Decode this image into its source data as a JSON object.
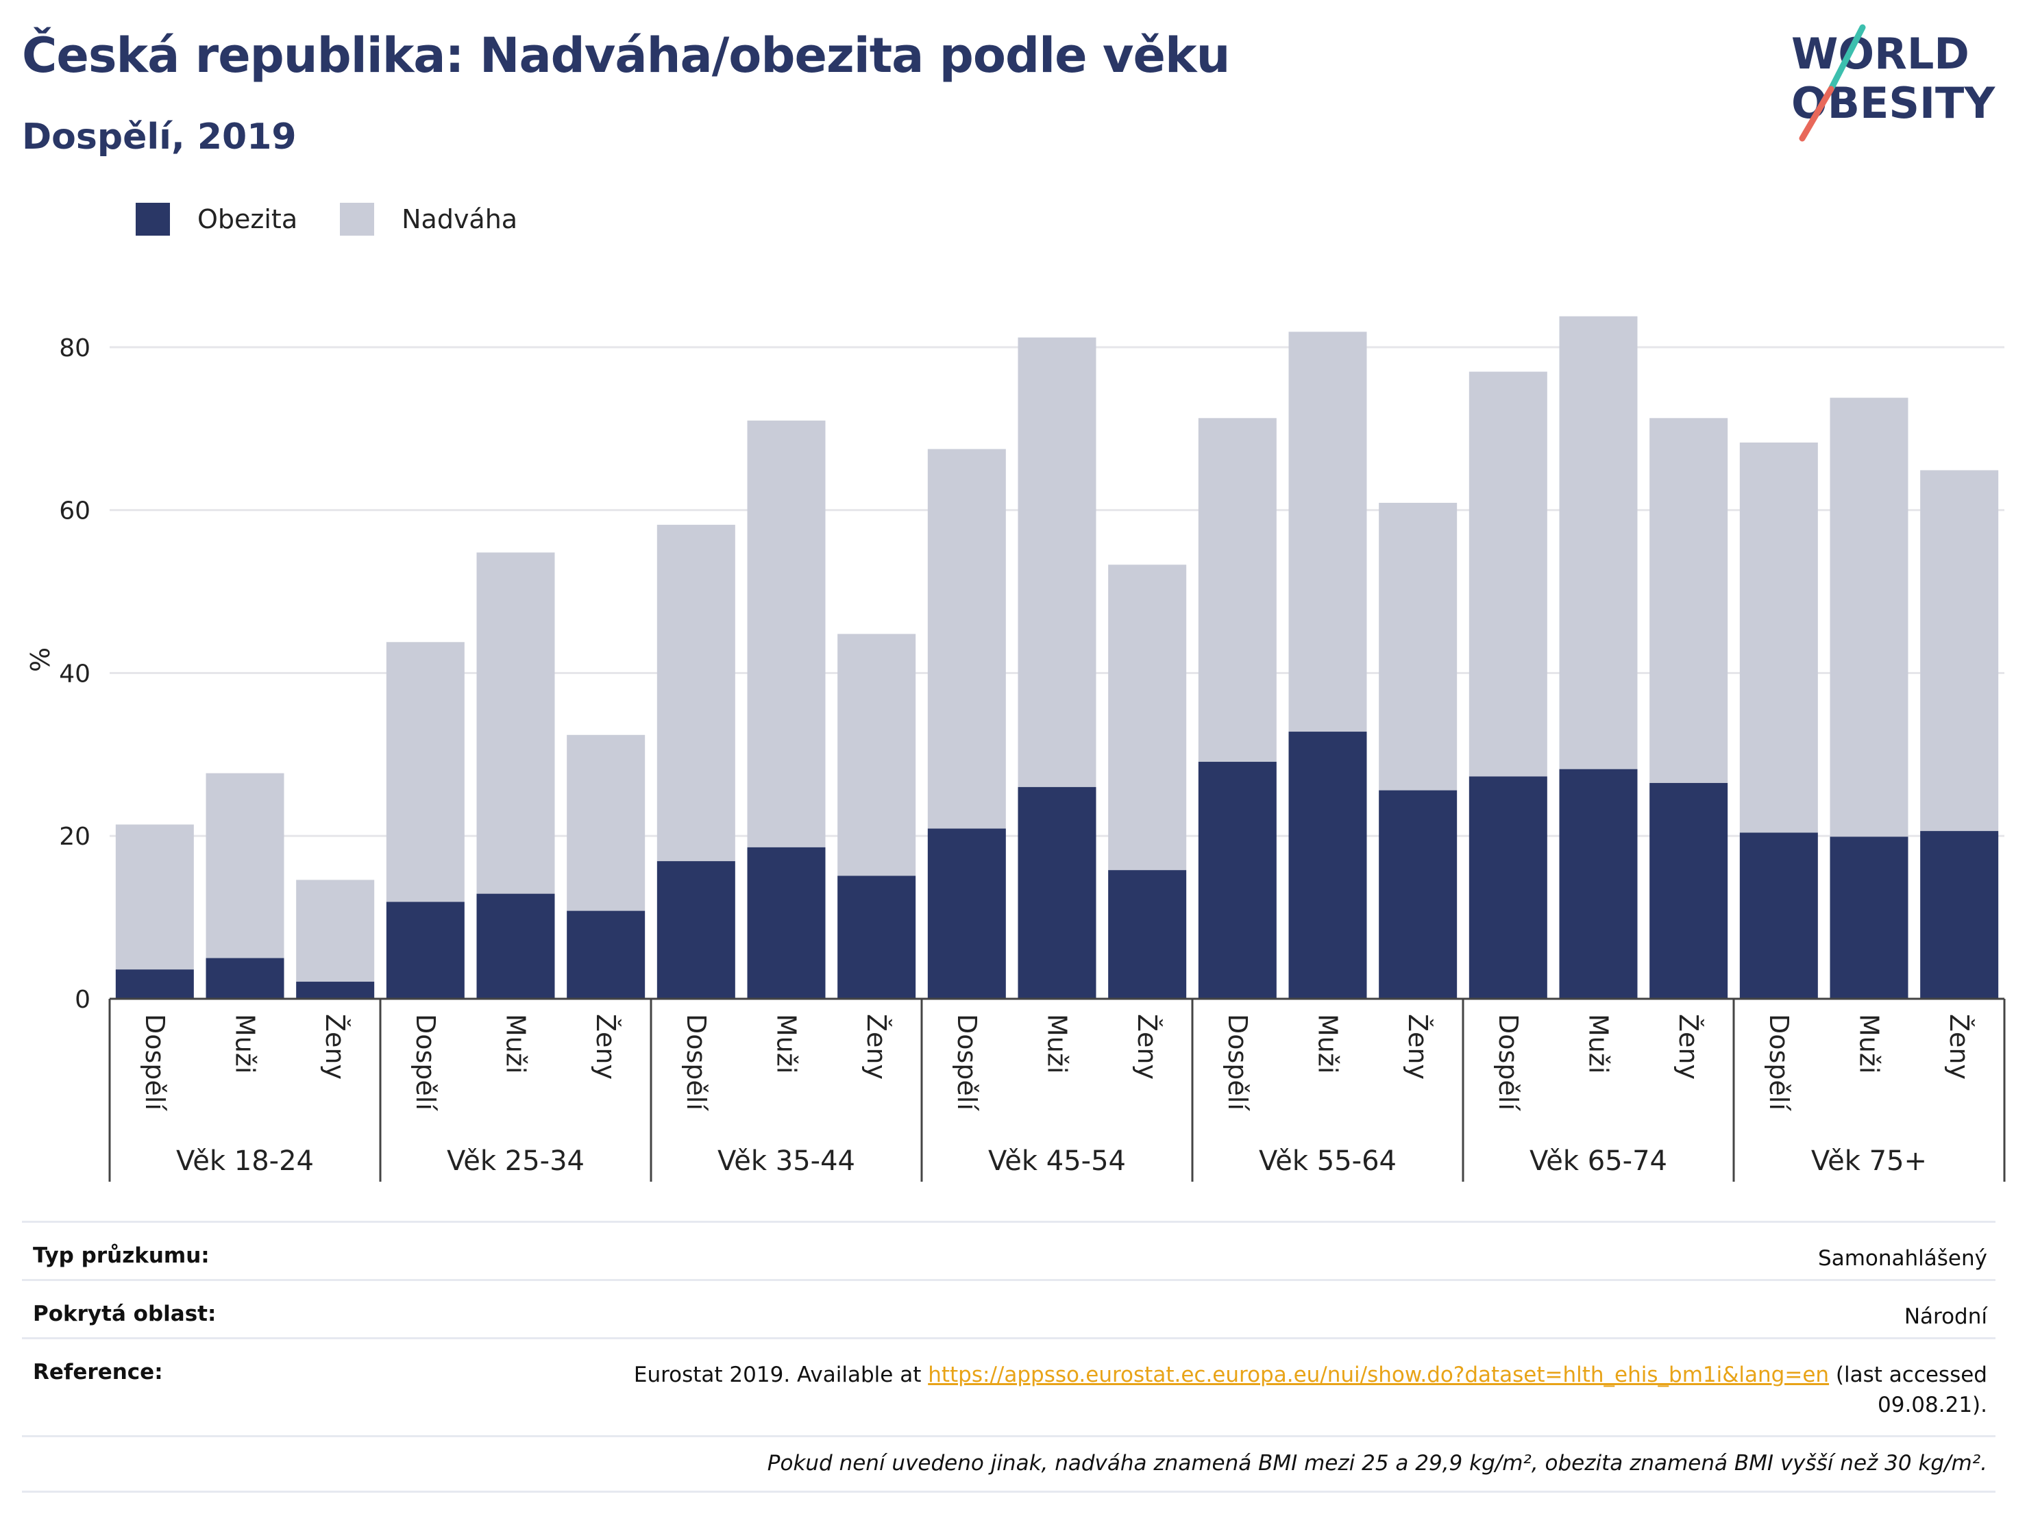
{
  "header": {
    "title": "Česká republika: Nadváha/obezita podle věku",
    "subtitle": "Dospělí, 2019"
  },
  "logo": {
    "line1": "WORLD",
    "line2": "OBESITY",
    "colors": {
      "text": "#2a3766",
      "slash_top": "#3cbfae",
      "slash_bottom": "#e8685a"
    }
  },
  "legend": {
    "items": [
      {
        "label": "Obezita",
        "color": "#2a3766"
      },
      {
        "label": "Nadváha",
        "color": "#c9ccd8"
      }
    ]
  },
  "chart_data": {
    "type": "bar",
    "stacked": true,
    "ylabel": "%",
    "ylim": [
      0,
      90
    ],
    "yticks": [
      0,
      20,
      40,
      60,
      80
    ],
    "grid": true,
    "groups": [
      "Věk 18-24",
      "Věk 25-34",
      "Věk 35-44",
      "Věk 45-54",
      "Věk 55-64",
      "Věk 65-74",
      "Věk 75+"
    ],
    "subcategories": [
      "Dospělí",
      "Muži",
      "Ženy"
    ],
    "series": [
      {
        "name": "Obezita",
        "color": "#2a3766",
        "values": [
          3.6,
          5.0,
          2.1,
          11.9,
          12.9,
          10.8,
          16.9,
          18.6,
          15.1,
          20.9,
          26.0,
          15.8,
          29.1,
          32.8,
          25.6,
          27.3,
          28.2,
          26.5,
          20.4,
          19.9,
          20.6
        ]
      },
      {
        "name": "Nadváha",
        "color": "#c9ccd8",
        "values": [
          17.8,
          22.7,
          12.5,
          31.9,
          41.9,
          21.6,
          41.3,
          52.4,
          29.7,
          46.6,
          55.2,
          37.5,
          42.2,
          49.1,
          35.3,
          49.7,
          55.6,
          44.8,
          47.9,
          53.9,
          44.3
        ]
      }
    ]
  },
  "info": {
    "rows": [
      {
        "key": "Typ průzkumu:",
        "value": "Samonahlášený"
      },
      {
        "key": "Pokrytá oblast:",
        "value": "Národní"
      },
      {
        "key": "Reference:",
        "value_prefix": "Eurostat 2019. Available at ",
        "link": "https://appsso.eurostat.ec.europa.eu/nui/show.do?dataset=hlth_ehis_bm1i&lang=en",
        "value_suffix": " (last accessed 09.08.21)."
      }
    ],
    "note": "Pokud není uvedeno jinak, nadváha znamená BMI mezi 25 a 29,9 kg/m², obezita znamená BMI vyšší než 30 kg/m²."
  }
}
